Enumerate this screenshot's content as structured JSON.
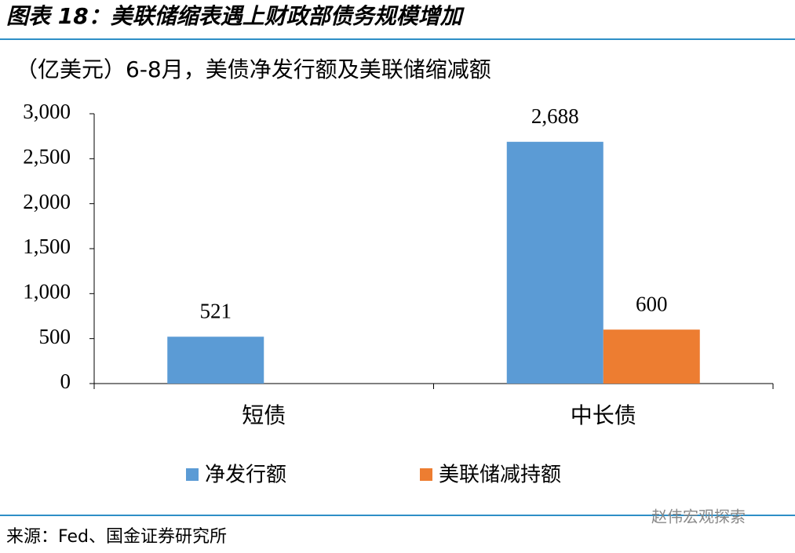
{
  "header": {
    "title": "图表 18：美联储缩表遇上财政部债务规模增加"
  },
  "chart_data": {
    "type": "bar",
    "title": "（亿美元）6-8月，美债净发行额及美联储缩减额",
    "categories": [
      "短债",
      "中长债"
    ],
    "series": [
      {
        "name": "净发行额",
        "color": "#5b9bd5",
        "values": [
          521,
          2688
        ],
        "value_labels": [
          "521",
          "2,688"
        ]
      },
      {
        "name": "美联储减持额",
        "color": "#ed7d31",
        "values": [
          null,
          600
        ],
        "value_labels": [
          null,
          "600"
        ]
      }
    ],
    "ylim": [
      0,
      3000
    ],
    "yticks": [
      0,
      500,
      {
        "value": 1000,
        "label": "1,000"
      },
      {
        "value": 1500,
        "label": "1,500"
      },
      {
        "value": 2000,
        "label": "2,000"
      },
      {
        "value": 2500,
        "label": "2,500"
      },
      {
        "value": 3000,
        "label": "3,000"
      }
    ],
    "legend": "bottom",
    "grid": false
  },
  "footer": {
    "source": "来源：Fed、国金证券研究所",
    "watermark": "赵伟宏观探索"
  }
}
